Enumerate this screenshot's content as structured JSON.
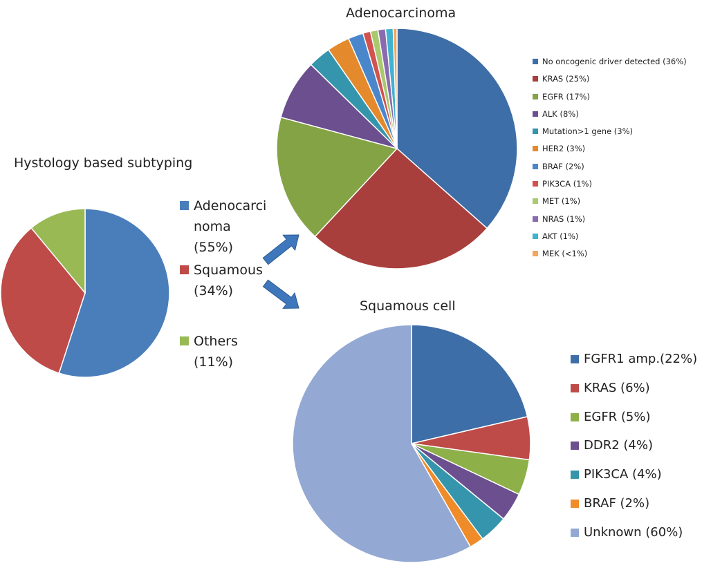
{
  "chart_data": [
    {
      "id": "histology",
      "type": "pie",
      "title": "Hystology based subtyping",
      "legend": "right",
      "slices": [
        {
          "label": "Adenocarci\nnoma\n(55%)",
          "value": 55,
          "color": "#4a7ebb"
        },
        {
          "label": "Squamous\n(34%)",
          "value": 34,
          "color": "#be4b48"
        },
        {
          "label": "Others\n(11%)",
          "value": 11,
          "color": "#98b954"
        }
      ]
    },
    {
      "id": "adenocarcinoma",
      "type": "pie",
      "title": "Adenocarcinoma",
      "legend": "right",
      "slices": [
        {
          "label": "No oncogenic driver detected (36%)",
          "value": 36,
          "color": "#3e6ea7"
        },
        {
          "label": "KRAS (25%)",
          "value": 25,
          "color": "#a83f3c"
        },
        {
          "label": "EGFR (17%)",
          "value": 17,
          "color": "#84a345"
        },
        {
          "label": "ALK (8%)",
          "value": 8,
          "color": "#6c4f8e"
        },
        {
          "label": "Mutation>1 gene (3%)",
          "value": 3,
          "color": "#3595ac"
        },
        {
          "label": "HER2 (3%)",
          "value": 3,
          "color": "#e48a2d"
        },
        {
          "label": "BRAF (2%)",
          "value": 2,
          "color": "#4a86cc"
        },
        {
          "label": "PIK3CA (1%)",
          "value": 1,
          "color": "#d2524f"
        },
        {
          "label": "MET (1%)",
          "value": 1,
          "color": "#a9c96d"
        },
        {
          "label": "NRAS (1%)",
          "value": 1,
          "color": "#8a6bb0"
        },
        {
          "label": "AKT (1%)",
          "value": 1,
          "color": "#3fb3cf"
        },
        {
          "label": "MEK (<1%)",
          "value": 0.5,
          "color": "#f4a65a"
        }
      ]
    },
    {
      "id": "squamous",
      "type": "pie",
      "title": "Squamous cell",
      "legend": "right",
      "slices": [
        {
          "label": "FGFR1 amp.(22%)",
          "value": 22,
          "color": "#3e6ea7"
        },
        {
          "label": "KRAS (6%)",
          "value": 6,
          "color": "#be4b48"
        },
        {
          "label": "EGFR (5%)",
          "value": 5,
          "color": "#8db049"
        },
        {
          "label": "DDR2 (4%)",
          "value": 4,
          "color": "#6c4f8e"
        },
        {
          "label": "PIK3CA (4%)",
          "value": 4,
          "color": "#3595ac"
        },
        {
          "label": "BRAF (2%)",
          "value": 2,
          "color": "#f08b2a"
        },
        {
          "label": "Unknown (60%)",
          "value": 60,
          "color": "#93a9d3"
        }
      ]
    }
  ],
  "arrow_color": "#3f77bd"
}
